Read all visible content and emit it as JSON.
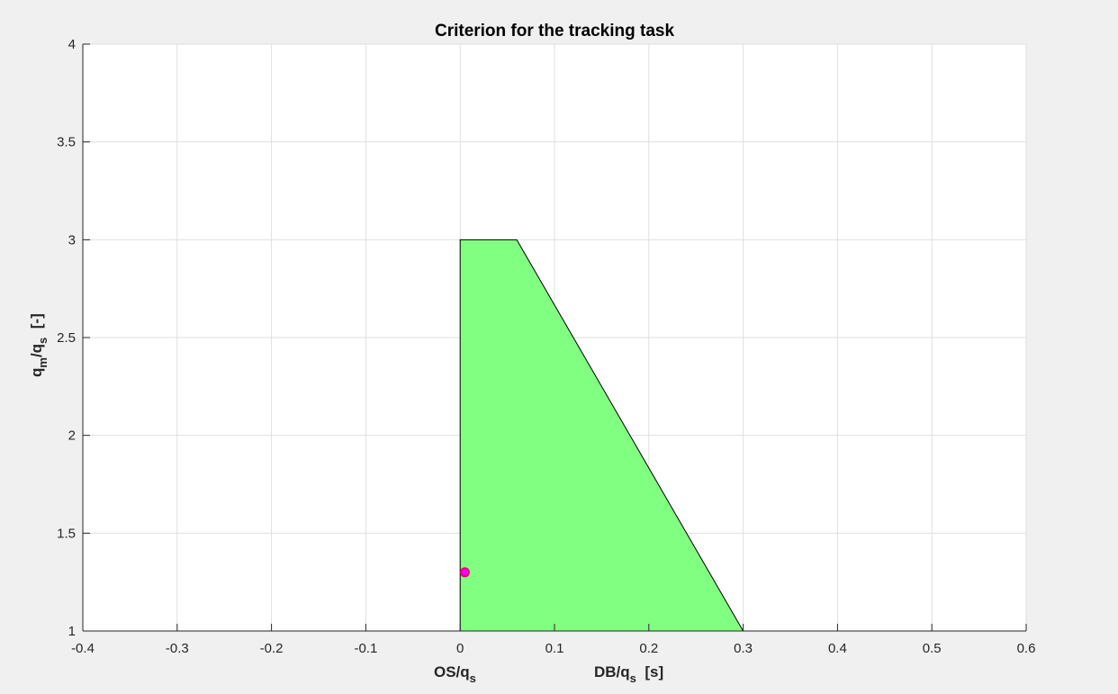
{
  "chart_data": {
    "type": "area",
    "title": "Criterion for the tracking task",
    "xlabel": {
      "left": {
        "main": "OS/q",
        "sub": "s",
        "suffix": ""
      },
      "right": {
        "main": "DB/q",
        "sub": "s",
        "suffix": "  [s]"
      }
    },
    "ylabel": {
      "main": "q",
      "sub1": "m",
      "mid": "/q",
      "sub2": "s",
      "suffix": "  [-]"
    },
    "xlim": [
      -0.4,
      0.6
    ],
    "ylim": [
      1,
      4
    ],
    "xticks": [
      -0.4,
      -0.3,
      -0.2,
      -0.1,
      0,
      0.1,
      0.2,
      0.3,
      0.4,
      0.5,
      0.6
    ],
    "xtick_labels": [
      "-0.4",
      "-0.3",
      "-0.2",
      "-0.1",
      "0",
      "0.1",
      "0.2",
      "0.3",
      "0.4",
      "0.5",
      "0.6"
    ],
    "yticks": [
      1,
      1.5,
      2,
      2.5,
      3,
      3.5,
      4
    ],
    "ytick_labels": [
      "1",
      "1.5",
      "2",
      "2.5",
      "3",
      "3.5",
      "4"
    ],
    "grid": true,
    "region": {
      "x": [
        0,
        0.06,
        0.3,
        0
      ],
      "y": [
        3,
        3,
        1,
        1
      ],
      "fill_color": "#80ff80",
      "edge_color": "#000000"
    },
    "points": [
      {
        "x": 0.005,
        "y": 1.3,
        "face_color": "#ff00ff",
        "edge_color": "#e6007a"
      }
    ]
  }
}
